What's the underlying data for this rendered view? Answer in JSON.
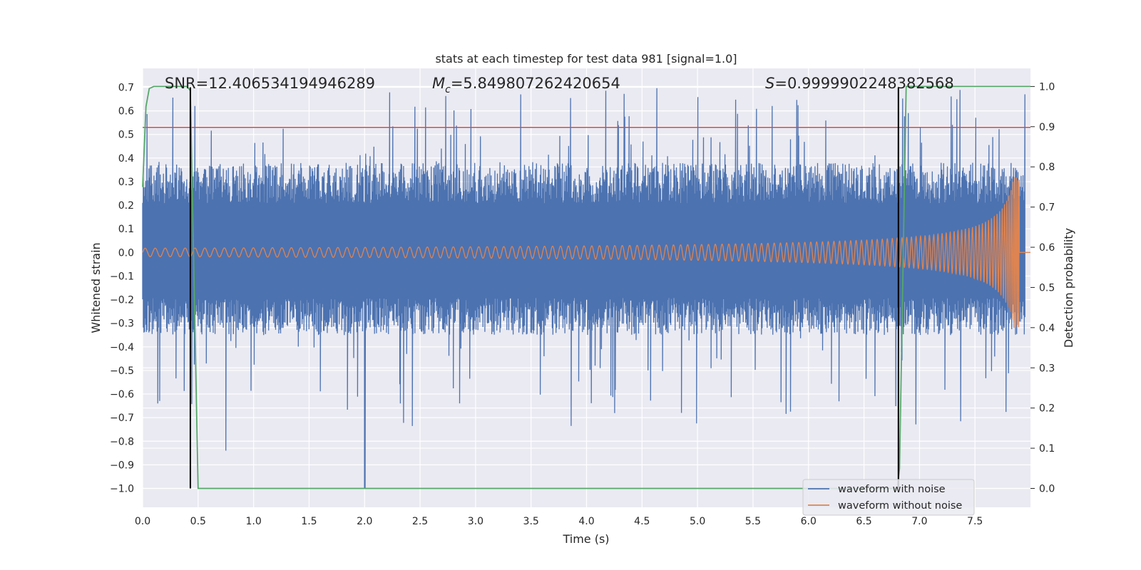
{
  "chart_data": {
    "type": "line",
    "title": "stats at each timestep for test data 981 [signal=1.0]",
    "xlabel": "Time (s)",
    "ylabel": "Whitened strain",
    "y2label": "Detection probability",
    "xlim": [
      0.0,
      8.0
    ],
    "ylim": [
      -1.08,
      0.78
    ],
    "y2lim": [
      -0.047,
      1.045
    ],
    "xticks": [
      "0.0",
      "0.5",
      "1.0",
      "1.5",
      "2.0",
      "2.5",
      "3.0",
      "3.5",
      "4.0",
      "4.5",
      "5.0",
      "5.5",
      "6.0",
      "6.5",
      "7.0",
      "7.5"
    ],
    "yticks": [
      "0.7",
      "0.6",
      "0.5",
      "0.4",
      "0.3",
      "0.2",
      "0.1",
      "0.0",
      "−0.1",
      "−0.2",
      "−0.3",
      "−0.4",
      "−0.5",
      "−0.6",
      "−0.7",
      "−0.8",
      "−0.9",
      "−1.0"
    ],
    "y2ticks": [
      "1.0",
      "0.9",
      "0.8",
      "0.7",
      "0.6",
      "0.5",
      "0.4",
      "0.3",
      "0.2",
      "0.1",
      "0.0"
    ],
    "grid": true,
    "legend_position": "lower-right",
    "annotations": {
      "snr": "SNR=12.406534194946289",
      "mc_symbol": "M",
      "mc_sub": "c",
      "mc_value": "=5.849807262420654",
      "s_symbol": "S",
      "s_value": "=0.9999902248382568"
    },
    "series": [
      {
        "name": "waveform with noise",
        "color": "#4c72b0",
        "axis": "left",
        "description_points": [
          [
            0.0,
            0.0
          ],
          [
            8.0,
            0.0
          ]
        ],
        "envelope": {
          "upper_typical": 0.38,
          "lower_typical": -0.35,
          "max": 0.7,
          "min": -1.0,
          "min_at": 2.0
        }
      },
      {
        "name": "waveform without noise",
        "color": "#dd8452",
        "axis": "left",
        "chirp": {
          "start_amp": 0.018,
          "end_amp": 0.32,
          "end_time": 7.9,
          "f0": 11,
          "tc": 7.93
        }
      },
      {
        "name": "",
        "color": "#55a868",
        "axis": "right",
        "x": [
          0.0,
          0.03,
          0.06,
          0.1,
          0.2,
          0.3,
          0.4,
          0.43,
          0.5,
          1.0,
          2.0,
          3.0,
          4.0,
          5.0,
          6.0,
          6.8,
          6.82,
          6.88,
          6.92,
          7.0,
          7.5,
          8.0
        ],
        "y": [
          0.75,
          0.95,
          0.995,
          1.0,
          1.0,
          1.0,
          1.0,
          0.99,
          0.0,
          0.0,
          0.0,
          0.0,
          0.0,
          0.0,
          0.0,
          0.0,
          0.05,
          1.0,
          1.0,
          1.0,
          1.0,
          1.0
        ]
      }
    ],
    "hlines": [
      {
        "y": 0.53,
        "color": "#c44e52",
        "axis": "left"
      }
    ],
    "vlines": [
      {
        "x": 0.43,
        "ymin": -1.0,
        "ymax": 0.7,
        "color": "#000000"
      },
      {
        "x": 6.81,
        "ymin": -1.0,
        "ymax": 0.7,
        "color": "#000000"
      }
    ]
  }
}
